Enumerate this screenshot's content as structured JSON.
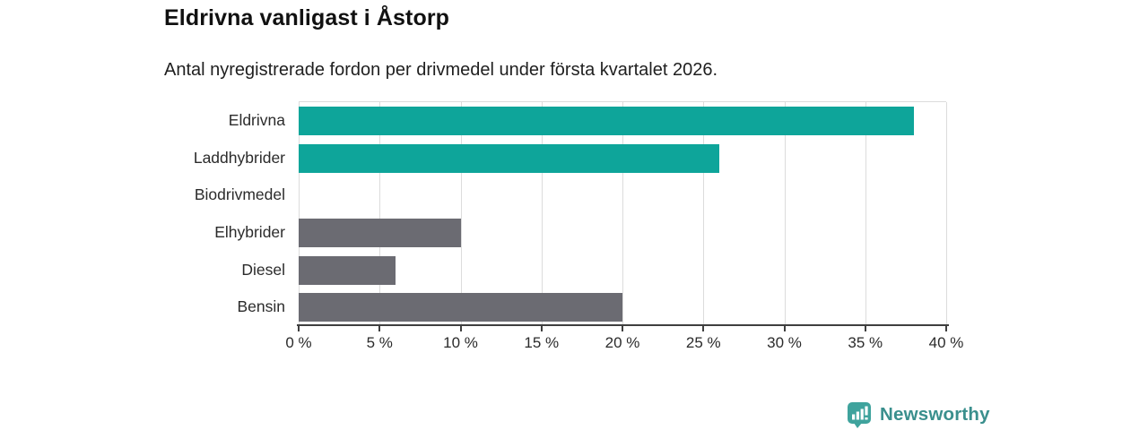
{
  "header": {
    "title": "Eldrivna vanligast i Åstorp",
    "subtitle": "Antal nyregistrerade fordon per drivmedel under första kvartalet 2026."
  },
  "chart_data": {
    "type": "bar",
    "orientation": "horizontal",
    "title": "Eldrivna vanligast i Åstorp",
    "subtitle": "Antal nyregistrerade fordon per drivmedel under första kvartalet 2026.",
    "categories": [
      "Eldrivna",
      "Laddhybrider",
      "Biodrivmedel",
      "Elhybrider",
      "Diesel",
      "Bensin"
    ],
    "values": [
      38,
      26,
      0,
      10,
      6,
      20
    ],
    "unit": "%",
    "bar_color_keys": [
      "teal",
      "teal",
      "none",
      "gray",
      "gray",
      "gray"
    ],
    "xlim": [
      0,
      40
    ],
    "x_ticks": [
      0,
      5,
      10,
      15,
      20,
      25,
      30,
      35,
      40
    ],
    "x_tick_labels": [
      "0 %",
      "5 %",
      "10 %",
      "15 %",
      "20 %",
      "25 %",
      "30 %",
      "35 %",
      "40 %"
    ],
    "xlabel": "",
    "ylabel": "",
    "grid": "vertical",
    "legend": "none"
  },
  "colors": {
    "teal": "#0ea59a",
    "gray": "#6b6b72",
    "gridline": "#dcdcdc",
    "axis": "#3f3f3f",
    "title_text": "#111111",
    "body_text": "#2b2b2b",
    "logo_icon": "#3fa39d",
    "logo_text": "#3a8f8d"
  },
  "footer": {
    "brand": "Newsworthy"
  }
}
